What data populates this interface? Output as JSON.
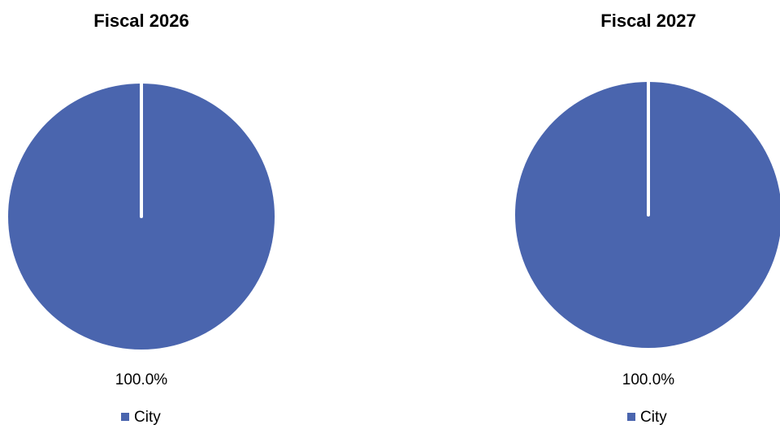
{
  "chart_data": [
    {
      "type": "pie",
      "title": "Fiscal 2026",
      "categories": [
        "City"
      ],
      "values": [
        100.0
      ],
      "data_labels": [
        "100.0%"
      ],
      "colors": [
        "#4a65ae"
      ],
      "legend": {
        "position": "bottom",
        "entries": [
          "City"
        ]
      }
    },
    {
      "type": "pie",
      "title": "Fiscal 2027",
      "categories": [
        "City"
      ],
      "values": [
        100.0
      ],
      "data_labels": [
        "100.0%"
      ],
      "colors": [
        "#4a65ae"
      ],
      "legend": {
        "position": "bottom",
        "entries": [
          "City"
        ]
      }
    }
  ]
}
